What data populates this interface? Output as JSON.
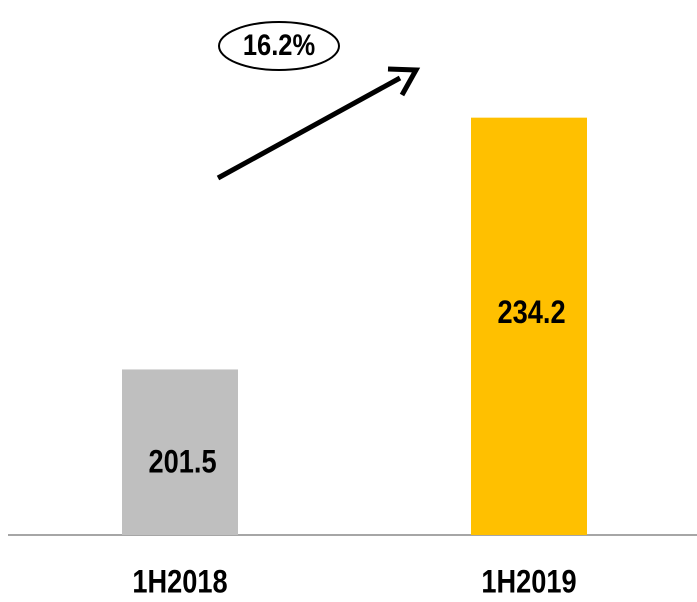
{
  "chart_data": {
    "type": "bar",
    "categories": [
      "1H2018",
      "1H2019"
    ],
    "values": [
      201.5,
      234.2
    ],
    "colors": [
      "#bfbfbf",
      "#ffc000"
    ],
    "ylim": [
      180,
      250
    ],
    "annotation": "16.2%"
  }
}
